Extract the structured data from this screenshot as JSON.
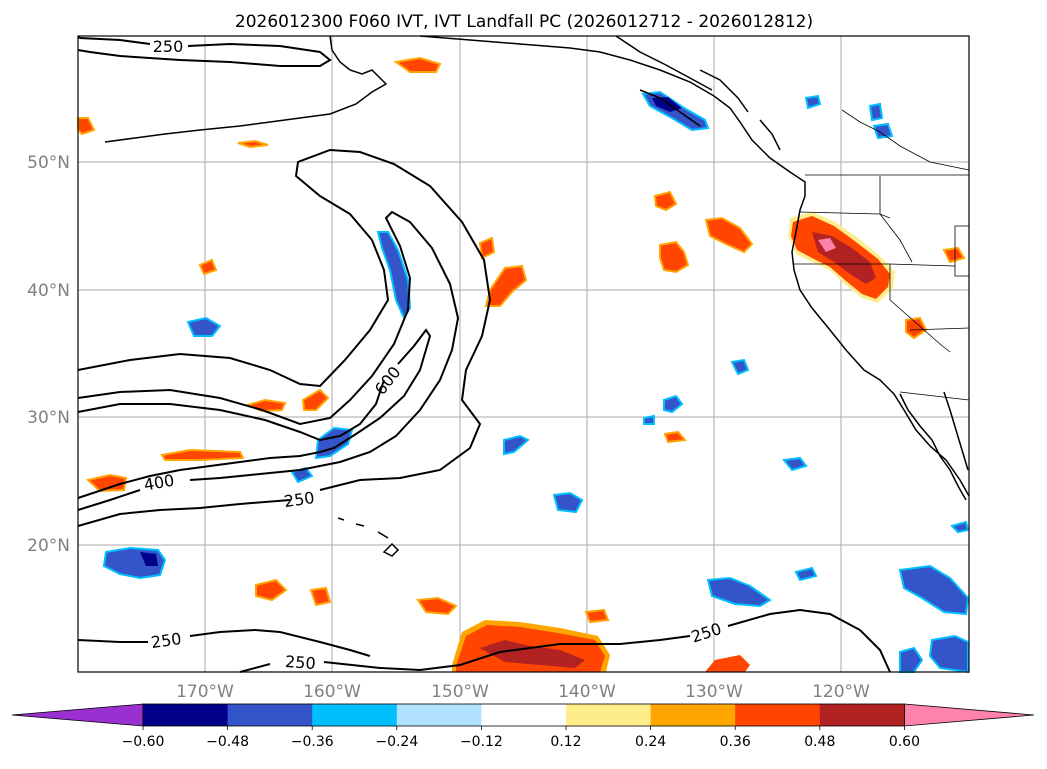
{
  "title": "2026012300 F060 IVT, IVT Landfall PC (2026012712 - 2026012812)",
  "lat_labels": [
    "50°N",
    "40°N",
    "30°N",
    "20°N"
  ],
  "lon_labels": [
    "170°W",
    "160°W",
    "150°W",
    "140°W",
    "130°W",
    "120°W"
  ],
  "contour_labels": [
    "250",
    "250",
    "400",
    "600",
    "250",
    "250",
    "250"
  ],
  "colorbar": {
    "tick_labels": [
      "−0.60",
      "−0.48",
      "−0.36",
      "−0.24",
      "−0.12",
      "0.12",
      "0.24",
      "0.36",
      "0.48",
      "0.60"
    ],
    "colors": [
      "#9b30d0",
      "#00008b",
      "#3455c9",
      "#00bfff",
      "#b0e2ff",
      "#ffffff",
      "#ffec8b",
      "#ffa500",
      "#ff4500",
      "#b22222",
      "#ff82ab"
    ]
  },
  "map_colors": {
    "grid": "#aaaaaa",
    "axis_label": "#808080",
    "coast": "#000000",
    "pos_strong": "#b22222",
    "pos_mid": "#ff4500",
    "pos_light": "#ffa500",
    "pos_edge": "#ffec8b",
    "neg_strong": "#00008b",
    "neg_mid": "#3455c9",
    "neg_light": "#00bfff",
    "neg_edge": "#b0e2ff",
    "pos_peak": "#ff82ab"
  }
}
